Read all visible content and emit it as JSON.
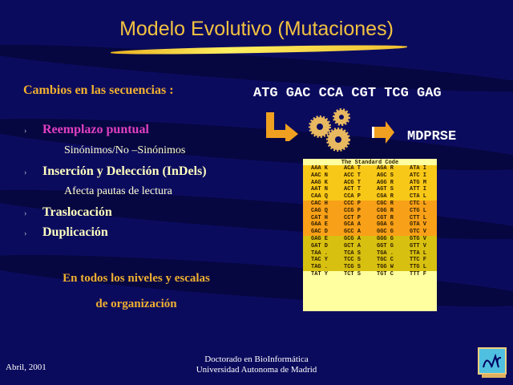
{
  "title": "Modelo Evolutivo (Mutaciones)",
  "heading": "Cambios en las secuencias :",
  "bullets": [
    {
      "label": "Reemplazo puntual",
      "sub": "Sinónimos/No –Sinónimos",
      "color": "#e040c0"
    },
    {
      "label": "Inserción y Delección (InDels)",
      "sub": "Afecta pautas de lectura"
    },
    {
      "label": "Traslocación"
    },
    {
      "label": "Duplicación"
    }
  ],
  "bullet_glyph": "›",
  "summary": [
    "En todos los niveles y escalas",
    "de organización"
  ],
  "dna_sequence": "ATG GAC CCA CGT TCG GAG",
  "protein_sequence": "MDPRSE",
  "icons": [
    "arrow-bent-icon",
    "gears-icon",
    "arrow-right-icon",
    "logo-dac"
  ],
  "code_table": {
    "title": "The Standard Code",
    "rows": [
      [
        "AAA K",
        "ACA T",
        "AGA R",
        "ATA I"
      ],
      [
        "AAC N",
        "ACC T",
        "AGC S",
        "ATC I"
      ],
      [
        "AAG K",
        "ACG T",
        "AGG R",
        "ATG M"
      ],
      [
        "AAT N",
        "ACT T",
        "AGT S",
        "ATT I"
      ],
      [
        "CAA Q",
        "CCA P",
        "CGA R",
        "CTA L"
      ],
      [
        "CAC H",
        "CCC P",
        "CGC R",
        "CTC L"
      ],
      [
        "CAG Q",
        "CCG P",
        "CGG R",
        "CTG L"
      ],
      [
        "CAT H",
        "CCT P",
        "CGT R",
        "CTT L"
      ],
      [
        "GAA E",
        "GCA A",
        "GGA G",
        "GTA V"
      ],
      [
        "GAC D",
        "GCC A",
        "GGC G",
        "GTC V"
      ],
      [
        "GAG E",
        "GCG A",
        "GGG G",
        "GTG V"
      ],
      [
        "GAT D",
        "GCT A",
        "GGT G",
        "GTT V"
      ],
      [
        "TAA .",
        "TCA S",
        "TGA .",
        "TTA L"
      ],
      [
        "TAC Y",
        "TCC S",
        "TGC C",
        "TTC F"
      ],
      [
        "TAG .",
        "TCG S",
        "TGG W",
        "TTG L"
      ],
      [
        "TAT Y",
        "TCT S",
        "TGT C",
        "TTT F"
      ]
    ],
    "row_colors": [
      "#f8c818",
      "#f8a018",
      "#d8c010",
      "#ffffa0"
    ]
  },
  "footer": {
    "date": "Abril, 2001",
    "line1": "Doctorado en BioInformática",
    "line2": "Universidad Autonoma de Madrid"
  }
}
